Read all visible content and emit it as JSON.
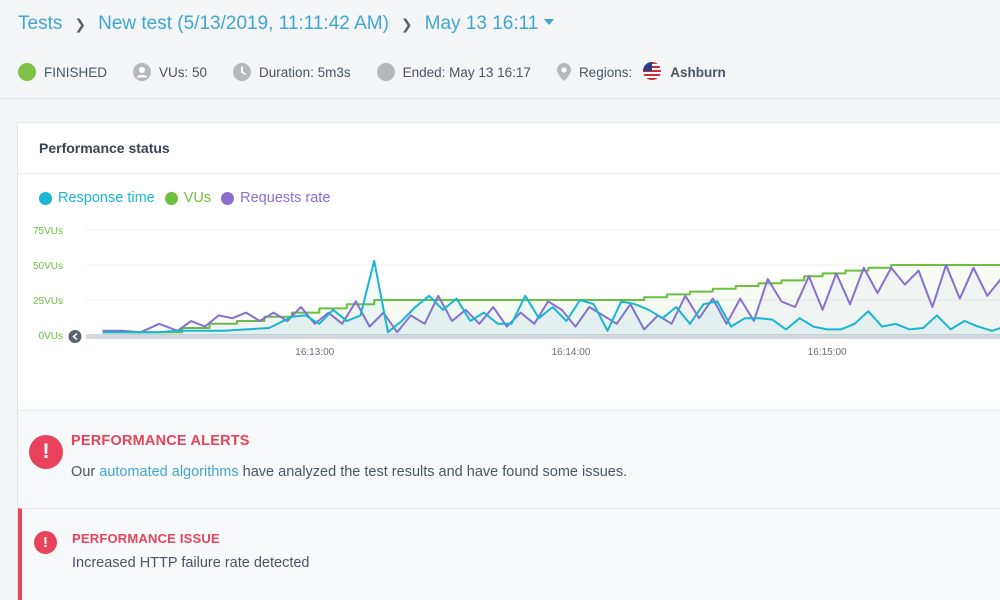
{
  "breadcrumb": {
    "root": "Tests",
    "test_name": "New test (5/13/2019, 11:11:42 AM)",
    "run": "May 13 16:11"
  },
  "status": {
    "state": "FINISHED",
    "state_color": "#7cc246",
    "vus": "VUs: 50",
    "duration": "Duration: 5m3s",
    "ended": "Ended: May 13 16:17",
    "regions_label": "Regions:",
    "region": "Ashburn",
    "icons": [
      "status-dot-icon",
      "user-icon",
      "clock-icon",
      "circle-icon",
      "location-pin-icon",
      "us-flag-icon"
    ]
  },
  "card": {
    "title": "Performance status"
  },
  "legend": [
    {
      "label": "Response time",
      "color": "#19b5d2"
    },
    {
      "label": "VUs",
      "color": "#6cbf3f"
    },
    {
      "label": "Requests rate",
      "color": "#8a6fcf"
    }
  ],
  "chart_data": {
    "type": "line",
    "title": "",
    "xlabel": "",
    "ylabel": "",
    "y_ticks": [
      "0VUs",
      "25VUs",
      "50VUs",
      "75VUs"
    ],
    "ylim": [
      0,
      75
    ],
    "x_ticks": [
      "16:13:00",
      "16:14:00",
      "16:15:00"
    ],
    "xlim": [
      0,
      1
    ],
    "grid": "horizontal",
    "legend_position": "top-left",
    "series": [
      {
        "name": "VUs",
        "color": "#6cbf3f",
        "x": [
          0.018,
          0.062,
          0.105,
          0.135,
          0.165,
          0.195,
          0.225,
          0.255,
          0.285,
          0.315,
          0.585,
          0.61,
          0.635,
          0.66,
          0.685,
          0.71,
          0.735,
          0.76,
          0.785,
          0.805,
          0.83,
          0.855,
          0.88,
          0.93,
          1.0
        ],
        "values": [
          2,
          2,
          5,
          8,
          10,
          13,
          16,
          19,
          22,
          25,
          25,
          27,
          29,
          31,
          33,
          35,
          37,
          39,
          42,
          44,
          46,
          48,
          50,
          50,
          50
        ]
      },
      {
        "name": "Response time",
        "color": "#19b5d2",
        "x": [
          0.018,
          0.04,
          0.06,
          0.08,
          0.1,
          0.125,
          0.15,
          0.175,
          0.2,
          0.225,
          0.24,
          0.255,
          0.27,
          0.285,
          0.3,
          0.315,
          0.33,
          0.345,
          0.36,
          0.375,
          0.39,
          0.405,
          0.42,
          0.435,
          0.45,
          0.465,
          0.48,
          0.495,
          0.51,
          0.525,
          0.54,
          0.555,
          0.57,
          0.585,
          0.6,
          0.615,
          0.63,
          0.645,
          0.66,
          0.675,
          0.69,
          0.705,
          0.72,
          0.735,
          0.75,
          0.765,
          0.78,
          0.795,
          0.81,
          0.825,
          0.84,
          0.855,
          0.87,
          0.885,
          0.9,
          0.915,
          0.93,
          0.945,
          0.96,
          0.975,
          0.99,
          1.0
        ],
        "values": [
          2,
          2,
          2,
          2,
          3,
          3,
          3,
          4,
          5,
          13,
          14,
          8,
          18,
          10,
          14,
          53,
          2,
          10,
          20,
          28,
          18,
          26,
          10,
          16,
          8,
          8,
          28,
          12,
          20,
          10,
          25,
          22,
          3,
          24,
          22,
          18,
          12,
          20,
          8,
          22,
          24,
          6,
          12,
          12,
          11,
          4,
          12,
          6,
          4,
          4,
          8,
          17,
          6,
          8,
          4,
          5,
          14,
          4,
          10,
          6,
          3,
          5
        ]
      },
      {
        "name": "Requests rate",
        "color": "#8a6fcf",
        "x": [
          0.018,
          0.04,
          0.06,
          0.08,
          0.1,
          0.115,
          0.13,
          0.145,
          0.16,
          0.175,
          0.19,
          0.205,
          0.22,
          0.235,
          0.25,
          0.265,
          0.28,
          0.295,
          0.31,
          0.325,
          0.34,
          0.355,
          0.37,
          0.385,
          0.4,
          0.415,
          0.43,
          0.445,
          0.46,
          0.475,
          0.49,
          0.505,
          0.52,
          0.535,
          0.55,
          0.565,
          0.58,
          0.595,
          0.61,
          0.625,
          0.64,
          0.655,
          0.67,
          0.685,
          0.7,
          0.715,
          0.73,
          0.745,
          0.76,
          0.775,
          0.79,
          0.805,
          0.82,
          0.835,
          0.85,
          0.865,
          0.88,
          0.895,
          0.91,
          0.925,
          0.94,
          0.955,
          0.97,
          0.985,
          1.0
        ],
        "values": [
          3,
          3,
          2,
          8,
          3,
          10,
          6,
          14,
          12,
          16,
          10,
          16,
          10,
          20,
          8,
          16,
          8,
          24,
          6,
          16,
          2,
          14,
          8,
          28,
          10,
          18,
          8,
          20,
          6,
          16,
          8,
          24,
          18,
          6,
          20,
          14,
          8,
          22,
          4,
          14,
          8,
          28,
          12,
          26,
          8,
          26,
          10,
          40,
          24,
          20,
          42,
          18,
          44,
          22,
          48,
          30,
          48,
          36,
          46,
          20,
          50,
          26,
          48,
          28,
          40
        ]
      }
    ]
  },
  "alerts": {
    "title": "PERFORMANCE ALERTS",
    "desc_before": "Our ",
    "desc_link": "automated algorithms",
    "desc_after": " have analyzed the test results and have found some issues.",
    "issue_title": "PERFORMANCE ISSUE",
    "issue_desc": "Increased HTTP failure rate detected",
    "color": "#e8435a"
  }
}
